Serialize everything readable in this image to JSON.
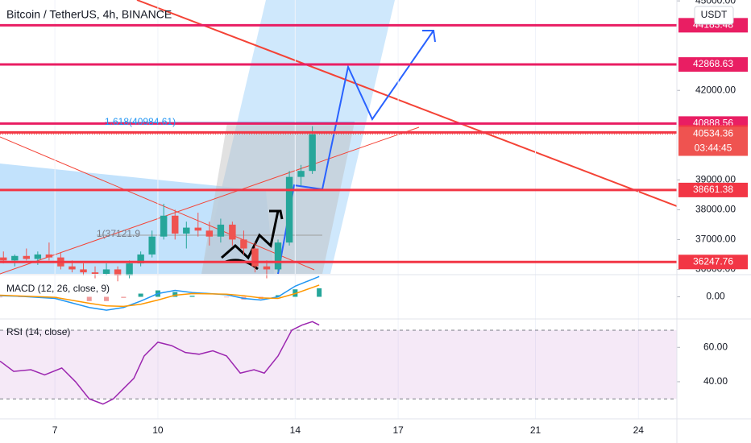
{
  "header": {
    "title": "Bitcoin / TetherUS, 4h, BINANCE",
    "currency": "USDT"
  },
  "chart_data": [
    {
      "type": "candlestick",
      "x": [
        5.5,
        5.83,
        6.17,
        6.5,
        6.83,
        7.17,
        7.5,
        7.83,
        8.17,
        8.5,
        8.83,
        9.17,
        9.5,
        9.83,
        10.17,
        10.5,
        10.83,
        11.17,
        11.5,
        11.83,
        12.17,
        12.5,
        12.83,
        13.17,
        13.5,
        13.83,
        14.17,
        14.5
      ],
      "open": [
        36400,
        36300,
        36450,
        36350,
        36500,
        36400,
        36100,
        36000,
        35900,
        35850,
        36000,
        35800,
        36200,
        36500,
        37100,
        37800,
        37200,
        37400,
        37300,
        37100,
        37500,
        37000,
        36700,
        36100,
        36000,
        36900,
        39100,
        39300
      ],
      "high": [
        36600,
        36500,
        36700,
        36600,
        36900,
        36550,
        36300,
        36200,
        36100,
        36200,
        36100,
        36300,
        36600,
        37300,
        38200,
        38000,
        37600,
        37900,
        37600,
        37700,
        37600,
        37300,
        36900,
        36300,
        37000,
        39300,
        39500,
        40800
      ],
      "low": [
        36200,
        36100,
        36300,
        36150,
        36300,
        36000,
        35900,
        35800,
        35700,
        35800,
        35600,
        35700,
        36100,
        36400,
        37000,
        37000,
        36700,
        37100,
        36800,
        36900,
        36800,
        36500,
        35900,
        35700,
        35900,
        36800,
        38800,
        39200
      ],
      "close": [
        36300,
        36450,
        36350,
        36500,
        36400,
        36100,
        36000,
        35900,
        35850,
        36000,
        35800,
        36200,
        36500,
        37100,
        37800,
        37200,
        37400,
        37300,
        37100,
        37500,
        37000,
        36700,
        36100,
        36000,
        36900,
        39100,
        39300,
        40534.36
      ],
      "up_color": "#26a69a",
      "down_color": "#ef5350",
      "xlim": [
        5.4,
        25.12
      ],
      "xticks": [
        7,
        10,
        14,
        17,
        21,
        24
      ],
      "ylim": [
        35850,
        45030
      ],
      "yticks": [
        {
          "value": 45000,
          "label": "45000.00"
        },
        {
          "value": 42000,
          "label": "42000.00"
        },
        {
          "value": 39000,
          "label": "39000.00"
        },
        {
          "value": 38000,
          "label": "38000.00"
        },
        {
          "value": 37000,
          "label": "37000.00"
        },
        {
          "value": 36000,
          "label": "36000.00"
        }
      ],
      "levels": [
        44183.48,
        42868.63,
        40888.56,
        40591.09,
        38661.38,
        36247.76
      ],
      "level_colors": [
        "#e91e63",
        "#e91e63",
        "#e91e63",
        "#f23645",
        "#f23645",
        "#f23645"
      ],
      "last_price": 40534.36,
      "countdown": "03:44:45",
      "annotations": [
        "1.618(40984.61)",
        "1(37121.9"
      ]
    },
    {
      "type": "macd",
      "title": "MACD (12, 26, close, 9)",
      "x": [
        5.4,
        6,
        7,
        8,
        8.5,
        9,
        9.5,
        10,
        10.5,
        11,
        12,
        12.5,
        13,
        13.5,
        14,
        14.7
      ],
      "series": [
        {
          "name": "MACD",
          "color": "#2196f3",
          "values": [
            20,
            10,
            -30,
            -200,
            -250,
            -200,
            -80,
            60,
            120,
            80,
            40,
            -30,
            -60,
            0,
            200,
            380
          ]
        },
        {
          "name": "Signal",
          "color": "#ff9800",
          "values": [
            30,
            15,
            -10,
            -120,
            -170,
            -180,
            -140,
            -60,
            30,
            60,
            50,
            20,
            -20,
            -30,
            60,
            220
          ]
        }
      ],
      "histogram": [
        -10,
        -5,
        -20,
        -80,
        -80,
        -20,
        60,
        120,
        90,
        20,
        -10,
        -50,
        -40,
        30,
        140,
        160
      ],
      "ylim": [
        -400,
        400
      ],
      "yticks": [
        {
          "value": 0,
          "label": "0.00"
        }
      ]
    },
    {
      "type": "rsi",
      "title": "RSI (14, close)",
      "x": [
        5.4,
        5.8,
        6.3,
        6.7,
        7.2,
        7.6,
        8.0,
        8.4,
        8.7,
        9.0,
        9.3,
        9.6,
        10.0,
        10.4,
        10.8,
        11.2,
        11.6,
        12.0,
        12.4,
        12.8,
        13.1,
        13.5,
        13.9,
        14.2,
        14.5,
        14.7
      ],
      "values": [
        52,
        46,
        47,
        44,
        48,
        40,
        30,
        27,
        30,
        36,
        42,
        55,
        63,
        61,
        57,
        56,
        58,
        55,
        45,
        47,
        45,
        55,
        70,
        73,
        75,
        73
      ],
      "color": "#9c27b0",
      "band": [
        30,
        70
      ],
      "ylim": [
        18.4,
        75.6
      ],
      "yticks": [
        {
          "value": 60,
          "label": "60.00"
        },
        {
          "value": 40,
          "label": "40.00"
        }
      ]
    }
  ]
}
